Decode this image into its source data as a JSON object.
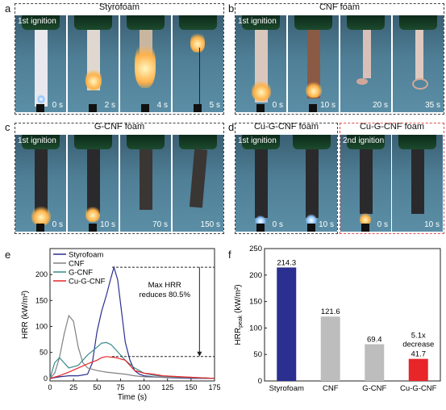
{
  "panels": {
    "a": {
      "letter": "a",
      "title": "Styrofoam",
      "ignition": "1st ignition",
      "times": [
        "0 s",
        "2 s",
        "4 s",
        "5 s"
      ]
    },
    "b": {
      "letter": "b",
      "title": "CNF foam",
      "ignition": "1st ignition",
      "times": [
        "0 s",
        "10 s",
        "20 s",
        "35 s"
      ]
    },
    "c": {
      "letter": "c",
      "title": "G-CNF foam",
      "ignition": "1st ignition",
      "times": [
        "0 s",
        "10 s",
        "70 s",
        "150 s"
      ]
    },
    "d": {
      "letter": "d",
      "title1": "Cu-G-CNF foam",
      "title2": "Cu-G-CNF foam",
      "ignition1": "1st ignition",
      "ignition2": "2nd ignition",
      "times": [
        "0 s",
        "10 s",
        "0 s",
        "10 s"
      ]
    },
    "e": {
      "letter": "e"
    },
    "f": {
      "letter": "f"
    }
  },
  "colors": {
    "styrofoam": "#2b2f8f",
    "cnf": "#808080",
    "gcnf": "#3a8a8a",
    "cugcnf": "#e8262a",
    "bar_gray": "#bdbdbd"
  },
  "chart_data": [
    {
      "type": "line",
      "xlabel": "Time (s)",
      "ylabel": "HRR (kW/m²)",
      "xlim": [
        0,
        175
      ],
      "ylim": [
        -5,
        250
      ],
      "xticks": [
        0,
        25,
        50,
        75,
        100,
        125,
        150,
        175
      ],
      "yticks": [
        0,
        50,
        100,
        150,
        200
      ],
      "legend_position": "top-left",
      "annotation": "Max HRR reduces 80.5%",
      "series": [
        {
          "name": "Styrofoam",
          "x": [
            0,
            10,
            20,
            30,
            40,
            45,
            50,
            55,
            60,
            65,
            68,
            72,
            76,
            80,
            85,
            90,
            95,
            100,
            110,
            120,
            130,
            150,
            175
          ],
          "y": [
            0,
            3,
            5,
            5,
            8,
            30,
            90,
            130,
            160,
            195,
            214,
            190,
            130,
            70,
            35,
            15,
            8,
            5,
            3,
            2,
            1,
            0,
            0
          ]
        },
        {
          "name": "CNF",
          "x": [
            0,
            5,
            10,
            15,
            20,
            25,
            30,
            35,
            40,
            50,
            60,
            70,
            80,
            90,
            100,
            120,
            150,
            175
          ],
          "y": [
            0,
            10,
            40,
            85,
            121,
            110,
            60,
            30,
            20,
            15,
            12,
            10,
            8,
            5,
            3,
            2,
            1,
            0
          ]
        },
        {
          "name": "G-CNF",
          "x": [
            0,
            5,
            10,
            20,
            30,
            40,
            50,
            55,
            60,
            65,
            70,
            80,
            90,
            100,
            110,
            120,
            150,
            175
          ],
          "y": [
            0,
            30,
            40,
            20,
            25,
            45,
            60,
            68,
            69,
            65,
            55,
            35,
            20,
            10,
            6,
            4,
            2,
            0
          ]
        },
        {
          "name": "Cu-G-CNF",
          "x": [
            0,
            10,
            20,
            30,
            40,
            50,
            55,
            60,
            70,
            80,
            85,
            90,
            100,
            110,
            120,
            150,
            175
          ],
          "y": [
            0,
            5,
            12,
            20,
            28,
            35,
            40,
            42,
            40,
            35,
            25,
            15,
            10,
            8,
            5,
            2,
            0
          ]
        }
      ]
    },
    {
      "type": "bar",
      "categories": [
        "Styrofoam",
        "CNF",
        "G-CNF",
        "Cu-G-CNF"
      ],
      "values": [
        214.3,
        121.6,
        69.4,
        41.7
      ],
      "value_labels": [
        "214.3",
        "121.6",
        "69.4",
        "41.7"
      ],
      "ylabel_main": "HRR",
      "ylabel_sub": "peak",
      "ylabel_unit": " (kW/m²)",
      "ylim": [
        0,
        250
      ],
      "yticks": [
        0,
        50,
        100,
        150,
        200,
        250
      ],
      "annotation_line1": "5.1x",
      "annotation_line2": "decrease"
    }
  ]
}
